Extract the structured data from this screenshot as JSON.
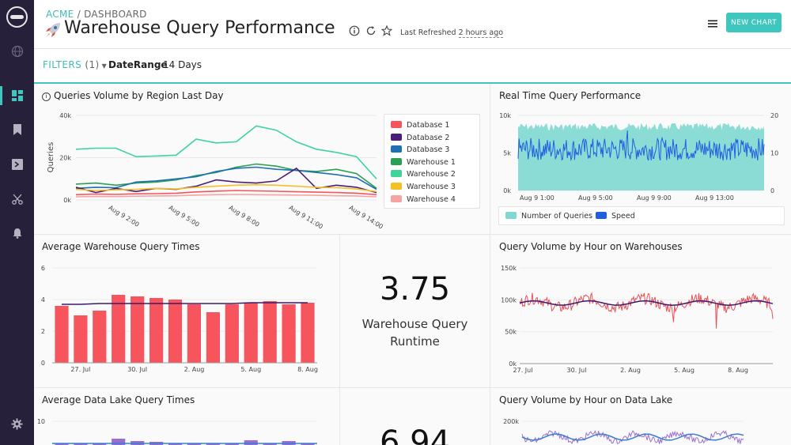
{
  "breadcrumb": {
    "org": "ACME",
    "sep": " / ",
    "section": "DASHBOARD"
  },
  "page_title": "Warehouse Query Performance",
  "header": {
    "refreshed_label": "Last Refreshed",
    "refreshed_ago": "2 hours ago",
    "new_chart_label": "NEW CHART"
  },
  "filters": {
    "label": "FILTERS",
    "count": "(1)",
    "key": "DateRange",
    "value": "14 Days"
  },
  "colors": {
    "accent": "#3fc7bf",
    "sidebar": "#26203a",
    "bar_red": "#f6555e",
    "avg_line": "#3b1a6b"
  },
  "panels": {
    "queries_region": {
      "title": "Queries Volume by Region Last Day",
      "ylabel": "Queries",
      "yticks": [
        "40k",
        "20k",
        "0k"
      ],
      "xticks": [
        "Aug 9 2:00",
        "Aug 9 5:00",
        "Aug 9 8:00",
        "Aug 9 11:00",
        "Aug 9 14:00"
      ],
      "legend": [
        {
          "name": "Database 1",
          "color": "#f6555e"
        },
        {
          "name": "Database 2",
          "color": "#4b1d7a"
        },
        {
          "name": "Database 3",
          "color": "#1f6fb5"
        },
        {
          "name": "Warehouse 1",
          "color": "#2aa052"
        },
        {
          "name": "Warehouse 2",
          "color": "#3ed49a"
        },
        {
          "name": "Warehouse 3",
          "color": "#f5c025"
        },
        {
          "name": "Warehouse 4",
          "color": "#f7a3a3"
        }
      ]
    },
    "realtime": {
      "title": "Real Time Query Performance",
      "yticks_left": [
        "10k",
        "5k",
        "0k"
      ],
      "yticks_right": [
        "20",
        "10",
        "0"
      ],
      "xticks": [
        "Aug 9 1:00",
        "Aug 9 5:00",
        "Aug 9 9:00",
        "Aug 9 13:00"
      ],
      "legend": [
        {
          "name": "Number of Queries",
          "color": "#7fd8d2"
        },
        {
          "name": "Speed",
          "color": "#1f5fe0"
        }
      ]
    },
    "avg_warehouse": {
      "title": "Average Warehouse Query Times",
      "yticks": [
        "6",
        "4",
        "2",
        "0"
      ],
      "xticks": [
        "27. Jul",
        "30. Jul",
        "2. Aug",
        "5. Aug",
        "8. Aug"
      ]
    },
    "kpi_warehouse": {
      "value": "3.75",
      "label_line1": "Warehouse Query",
      "label_line2": "Runtime"
    },
    "volume_warehouses": {
      "title": "Query Volume by Hour on Warehouses",
      "yticks": [
        "150k",
        "100k",
        "50k",
        "0k"
      ],
      "xticks": [
        "27. Jul",
        "30. Jul",
        "2. Aug",
        "5. Aug",
        "8. Aug"
      ]
    },
    "avg_datalake": {
      "title": "Average Data Lake Query Times",
      "yticks": [
        "10"
      ]
    },
    "kpi_datalake": {
      "value": "6.94"
    },
    "volume_datalake": {
      "title": "Query Volume by Hour on Data Lake",
      "yticks": [
        "200k"
      ]
    }
  },
  "chart_data": [
    {
      "type": "line",
      "title": "Queries Volume by Region Last Day",
      "ylabel": "Queries",
      "ylim": [
        0,
        40000
      ],
      "x": [
        "Aug 9 0:00",
        "Aug 9 1:00",
        "Aug 9 2:00",
        "Aug 9 3:00",
        "Aug 9 4:00",
        "Aug 9 5:00",
        "Aug 9 6:00",
        "Aug 9 7:00",
        "Aug 9 8:00",
        "Aug 9 9:00",
        "Aug 9 10:00",
        "Aug 9 11:00",
        "Aug 9 12:00",
        "Aug 9 13:00",
        "Aug 9 14:00",
        "Aug 9 15:00"
      ],
      "series": [
        {
          "name": "Warehouse 2",
          "values": [
            24000,
            24500,
            24500,
            20500,
            20800,
            21200,
            28800,
            27000,
            27500,
            35000,
            33000,
            27500,
            24000,
            22500,
            20500,
            10000
          ]
        },
        {
          "name": "Warehouse 1",
          "values": [
            7500,
            8000,
            7000,
            8000,
            8500,
            9500,
            11500,
            13000,
            15500,
            17000,
            16000,
            14000,
            13500,
            14500,
            12500,
            5500
          ]
        },
        {
          "name": "Database 3",
          "values": [
            5500,
            6000,
            5800,
            8500,
            9000,
            10000,
            11000,
            13500,
            15000,
            15500,
            14500,
            14000,
            13000,
            12000,
            10500,
            5000
          ]
        },
        {
          "name": "Database 2",
          "values": [
            6000,
            3500,
            5500,
            4000,
            5500,
            5000,
            6500,
            9500,
            8500,
            8000,
            9000,
            15000,
            5500,
            7000,
            6000,
            3500
          ]
        },
        {
          "name": "Warehouse 3",
          "values": [
            5000,
            4500,
            4800,
            5000,
            5500,
            5200,
            6000,
            6500,
            7000,
            7200,
            7000,
            6500,
            6000,
            5800,
            5200,
            4000
          ]
        },
        {
          "name": "Database 1",
          "values": [
            2500,
            2800,
            2600,
            2900,
            3000,
            3200,
            3800,
            4200,
            4500,
            4300,
            4100,
            3900,
            3700,
            3500,
            3200,
            2500
          ]
        },
        {
          "name": "Warehouse 4",
          "values": [
            1500,
            1700,
            1600,
            1800,
            1900,
            2000,
            2300,
            2500,
            2600,
            2500,
            2400,
            2300,
            2200,
            2000,
            1900,
            1500
          ]
        }
      ]
    },
    {
      "type": "area",
      "title": "Real Time Query Performance",
      "ylim_left": [
        0,
        10000
      ],
      "ylim_right": [
        0,
        20
      ],
      "x_range": [
        "Aug 9 0:00",
        "Aug 9 16:00"
      ],
      "series": [
        {
          "name": "Number of Queries",
          "axis": "left",
          "typical_range": [
            4500,
            9000
          ]
        },
        {
          "name": "Speed",
          "axis": "right",
          "typical_range": [
            8,
            14
          ]
        }
      ]
    },
    {
      "type": "bar",
      "title": "Average Warehouse Query Times",
      "ylim": [
        0,
        6
      ],
      "categories": [
        "26. Jul",
        "27. Jul",
        "28. Jul",
        "29. Jul",
        "30. Jul",
        "31. Jul",
        "1. Aug",
        "2. Aug",
        "3. Aug",
        "4. Aug",
        "5. Aug",
        "6. Aug",
        "7. Aug",
        "8. Aug"
      ],
      "values": [
        3.6,
        3.0,
        3.3,
        4.3,
        4.2,
        4.1,
        4.0,
        3.7,
        3.2,
        3.7,
        3.8,
        3.9,
        3.7,
        3.8
      ],
      "avg_line": [
        3.7,
        3.7,
        3.75,
        3.75,
        3.75,
        3.75,
        3.75,
        3.75,
        3.75,
        3.75,
        3.8,
        3.8,
        3.8,
        3.8
      ]
    },
    {
      "type": "line",
      "title": "Query Volume by Hour on Warehouses",
      "ylim": [
        0,
        150000
      ],
      "x_range": [
        "26. Jul",
        "9. Aug"
      ],
      "series": [
        {
          "name": "Hourly",
          "typical_range": [
            80000,
            110000
          ]
        },
        {
          "name": "Average",
          "typical_range": [
            90000,
            100000
          ]
        }
      ]
    },
    {
      "type": "bar",
      "title": "Average Data Lake Query Times",
      "ylim": [
        0,
        10
      ]
    },
    {
      "type": "line",
      "title": "Query Volume by Hour on Data Lake",
      "ylim": [
        0,
        200000
      ]
    }
  ]
}
